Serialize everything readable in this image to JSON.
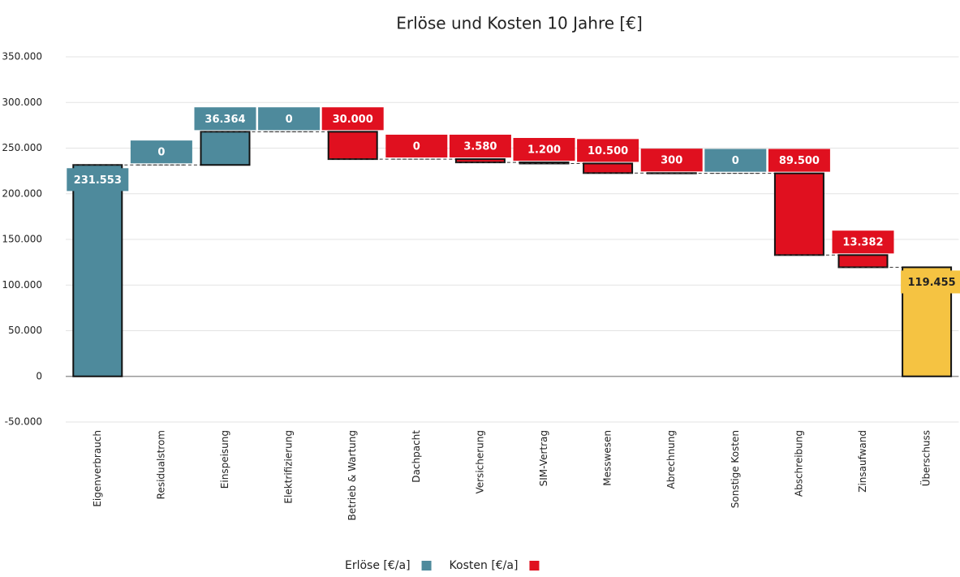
{
  "chart_data": {
    "type": "waterfall",
    "title": "Erlöse und Kosten 10 Jahre [€]",
    "categories": [
      "Eigenverbrauch",
      "Residualstrom",
      "Einspeisung",
      "Elektrifizierung",
      "Betrieb & Wartung",
      "Dachpacht",
      "Versicherung",
      "SIM-Vertrag",
      "Messwesen",
      "Abrechnung",
      "Sonstige Kosten",
      "Abschreibung",
      "Zinsaufwand",
      "Überschuss"
    ],
    "series": [
      {
        "name": "Erlöse [€/a]",
        "color": "#4e8a9c",
        "values": [
          231553,
          0,
          36364,
          0,
          null,
          null,
          null,
          null,
          null,
          null,
          0,
          null,
          null,
          null
        ],
        "value_labels": [
          "231.553",
          "0",
          "36.364",
          "0",
          null,
          null,
          null,
          null,
          null,
          null,
          "0",
          null,
          null,
          null
        ]
      },
      {
        "name": "Kosten [€/a]",
        "color": "#e0101f",
        "values": [
          null,
          null,
          null,
          null,
          30000,
          0,
          3580,
          1200,
          10500,
          300,
          null,
          89500,
          13382,
          null
        ],
        "value_labels": [
          null,
          null,
          null,
          null,
          "30.000",
          "0",
          "3.580",
          "1.200",
          "10.500",
          "300",
          null,
          "89.500",
          "13.382",
          null
        ]
      }
    ],
    "total": {
      "value": 119455,
      "label": "119.455",
      "color": "#f5c342"
    },
    "ylim": [
      -50000,
      350000
    ],
    "yticks": [
      {
        "value": -50000,
        "label": "-50.000"
      },
      0,
      {
        "value": 50000,
        "label": "50.000"
      },
      {
        "value": 100000,
        "label": "100.000"
      },
      {
        "value": 150000,
        "label": "150.000"
      },
      {
        "value": 200000,
        "label": "200.000"
      },
      {
        "value": 250000,
        "label": "250.000"
      },
      {
        "value": 300000,
        "label": "300.000"
      },
      {
        "value": 350000,
        "label": "350.000"
      }
    ],
    "grid": true
  }
}
